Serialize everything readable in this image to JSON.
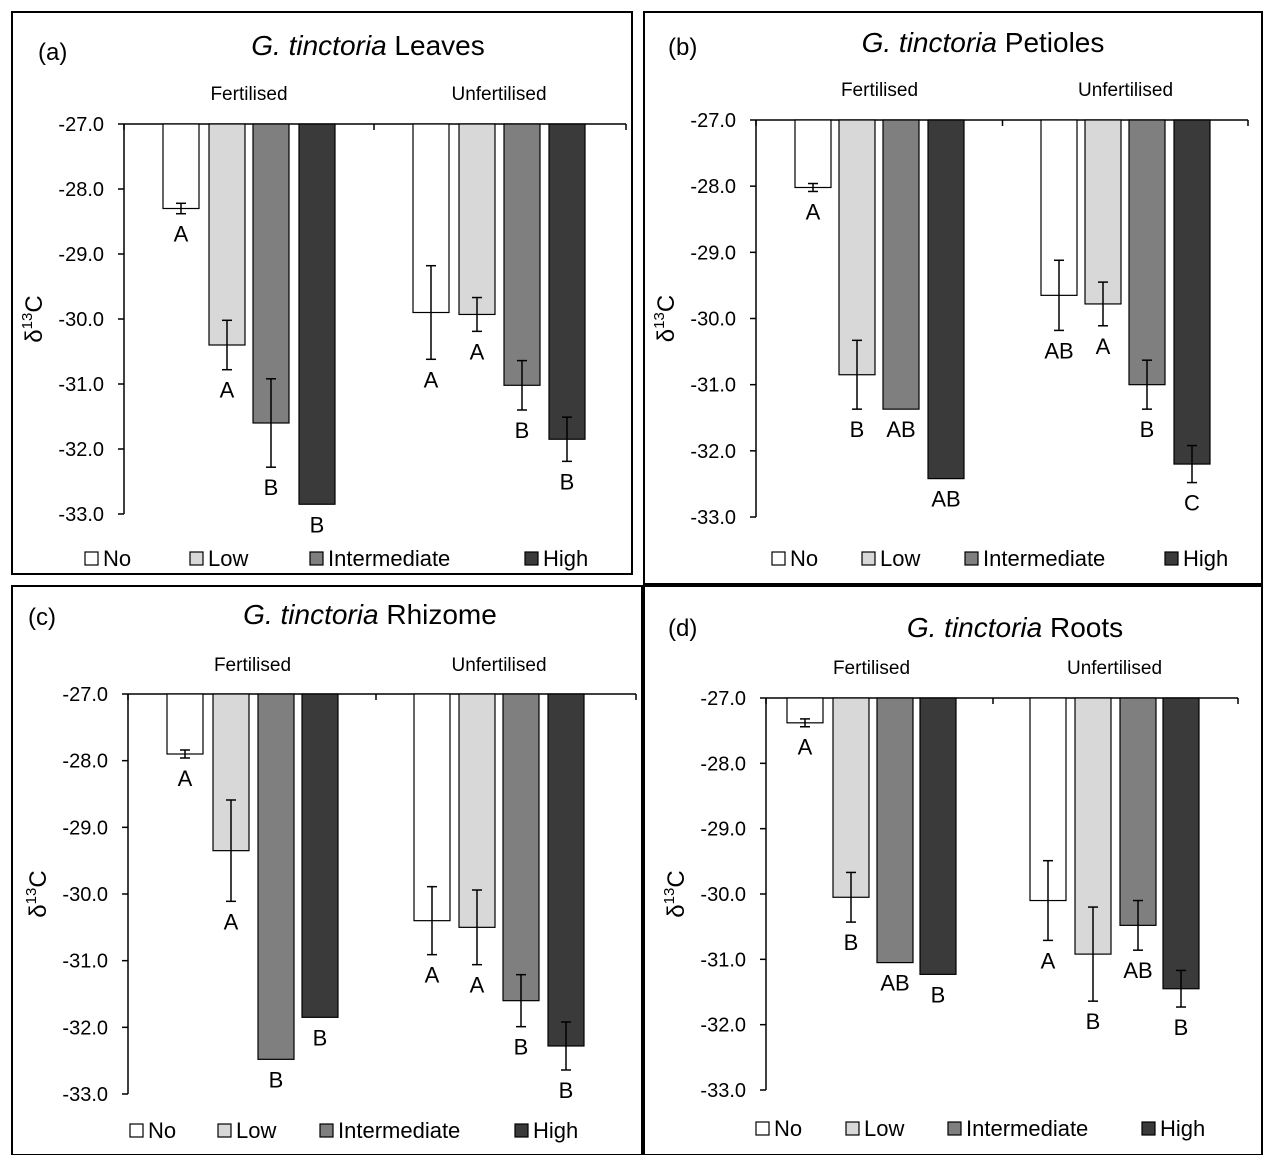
{
  "colors": {
    "No": "#ffffff",
    "Low": "#d8d8d8",
    "Intermediate": "#7f7f7f",
    "High": "#3a3a3a",
    "stroke": "#000000"
  },
  "chart_data": [
    {
      "type": "bar",
      "panel": "(a)",
      "title_italic": "G. tinctoria",
      "title_rest": " Leaves",
      "ylabel": "δ13C",
      "ylim": [
        -33.0,
        -27.0
      ],
      "yticks": [
        "-27.0",
        "-28.0",
        "-29.0",
        "-30.0",
        "-31.0",
        "-32.0",
        "-33.0"
      ],
      "groups": [
        "Fertilised",
        "Unfertilised"
      ],
      "series": [
        {
          "name": "No",
          "values": [
            -28.3,
            -29.9
          ],
          "errors": [
            0.08,
            0.72
          ],
          "letters": [
            "A",
            "A"
          ]
        },
        {
          "name": "Low",
          "values": [
            -30.4,
            -29.93
          ],
          "errors": [
            0.38,
            0.26
          ],
          "letters": [
            "A",
            "A"
          ]
        },
        {
          "name": "Intermediate",
          "values": [
            -31.6,
            -31.02
          ],
          "errors": [
            0.68,
            0.38
          ],
          "letters": [
            "B",
            "B"
          ]
        },
        {
          "name": "High",
          "values": [
            -32.85,
            -31.85
          ],
          "errors": [
            0,
            0.34
          ],
          "letters": [
            "B",
            "B"
          ]
        }
      ]
    },
    {
      "type": "bar",
      "panel": "(b)",
      "title_italic": "G. tinctoria",
      "title_rest": " Petioles",
      "ylabel": "δ13C",
      "ylim": [
        -33.0,
        -27.0
      ],
      "yticks": [
        "-27.0",
        "-28.0",
        "-29.0",
        "-30.0",
        "-31.0",
        "-32.0",
        "-33.0"
      ],
      "groups": [
        "Fertilised",
        "Unfertilised"
      ],
      "series": [
        {
          "name": "No",
          "values": [
            -28.02,
            -29.65
          ],
          "errors": [
            0.06,
            0.53
          ],
          "letters": [
            "A",
            "AB"
          ]
        },
        {
          "name": "Low",
          "values": [
            -30.85,
            -29.78
          ],
          "errors": [
            0.52,
            0.33
          ],
          "letters": [
            "B",
            "A"
          ]
        },
        {
          "name": "Intermediate",
          "values": [
            -31.37,
            -31.0
          ],
          "errors": [
            0,
            0.37
          ],
          "letters": [
            "AB",
            "B"
          ]
        },
        {
          "name": "High",
          "values": [
            -32.42,
            -32.2
          ],
          "errors": [
            0,
            0.28
          ],
          "letters": [
            "AB",
            "C"
          ]
        }
      ]
    },
    {
      "type": "bar",
      "panel": "(c)",
      "title_italic": "G. tinctoria",
      "title_rest": " Rhizome",
      "ylabel": "δ13C",
      "ylim": [
        -33.0,
        -27.0
      ],
      "yticks": [
        "-27.0",
        "-28.0",
        "-29.0",
        "-30.0",
        "-31.0",
        "-32.0",
        "-33.0"
      ],
      "groups": [
        "Fertilised",
        "Unfertilised"
      ],
      "series": [
        {
          "name": "No",
          "values": [
            -27.9,
            -30.4
          ],
          "errors": [
            0.06,
            0.51
          ],
          "letters": [
            "A",
            "A"
          ]
        },
        {
          "name": "Low",
          "values": [
            -29.35,
            -30.5
          ],
          "errors": [
            0.76,
            0.56
          ],
          "letters": [
            "A",
            "A"
          ]
        },
        {
          "name": "Intermediate",
          "values": [
            -32.48,
            -31.6
          ],
          "errors": [
            0,
            0.39
          ],
          "letters": [
            "B",
            "B"
          ]
        },
        {
          "name": "High",
          "values": [
            -31.85,
            -32.28
          ],
          "errors": [
            0,
            0.36
          ],
          "letters": [
            "B",
            "B"
          ]
        }
      ]
    },
    {
      "type": "bar",
      "panel": "(d)",
      "title_italic": "G. tinctoria",
      "title_rest": " Roots",
      "ylabel": "δ13C",
      "ylim": [
        -33.0,
        -27.0
      ],
      "yticks": [
        "-27.0",
        "-28.0",
        "-29.0",
        "-30.0",
        "-31.0",
        "-32.0",
        "-33.0"
      ],
      "groups": [
        "Fertilised",
        "Unfertilised"
      ],
      "series": [
        {
          "name": "No",
          "values": [
            -27.38,
            -30.1
          ],
          "errors": [
            0.06,
            0.61
          ],
          "letters": [
            "A",
            "A"
          ]
        },
        {
          "name": "Low",
          "values": [
            -30.05,
            -30.92
          ],
          "errors": [
            0.38,
            0.72
          ],
          "letters": [
            "B",
            "B"
          ]
        },
        {
          "name": "Intermediate",
          "values": [
            -31.05,
            -30.48
          ],
          "errors": [
            0,
            0.38
          ],
          "letters": [
            "AB",
            "AB"
          ]
        },
        {
          "name": "High",
          "values": [
            -31.23,
            -31.45
          ],
          "errors": [
            0,
            0.28
          ],
          "letters": [
            "B",
            "B"
          ]
        }
      ]
    }
  ]
}
